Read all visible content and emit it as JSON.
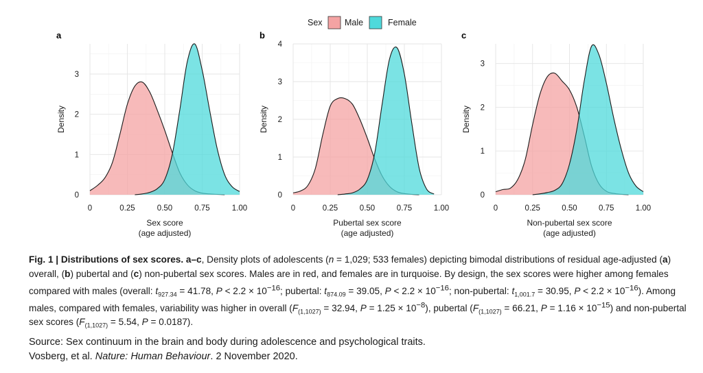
{
  "legend": {
    "title": "Sex",
    "items": [
      {
        "label": "Male",
        "color": "#F4A3A3"
      },
      {
        "label": "Female",
        "color": "#4FD9DB"
      }
    ]
  },
  "chart_data": [
    {
      "panel": "a",
      "type": "area",
      "xlabel": [
        "Sex score",
        "(age adjusted)"
      ],
      "ylabel": "Density",
      "xlim": [
        0,
        1
      ],
      "ylim": [
        0,
        3.75
      ],
      "xticks": [
        "0",
        "0.25",
        "0.50",
        "0.75",
        "1.00"
      ],
      "xtick_values": [
        0,
        0.25,
        0.5,
        0.75,
        1.0
      ],
      "yticks": [
        0,
        1,
        2,
        3
      ],
      "series": [
        {
          "name": "Male",
          "color": "#F4A3A3",
          "x": [
            0,
            0.05,
            0.1,
            0.15,
            0.2,
            0.25,
            0.3,
            0.35,
            0.4,
            0.45,
            0.5,
            0.55,
            0.6,
            0.65,
            0.7,
            0.75,
            0.8,
            0.85,
            0.9
          ],
          "y": [
            0.1,
            0.23,
            0.42,
            0.8,
            1.5,
            2.25,
            2.7,
            2.8,
            2.55,
            2.1,
            1.6,
            1.05,
            0.55,
            0.25,
            0.1,
            0.04,
            0.02,
            0.01,
            0
          ]
        },
        {
          "name": "Female",
          "color": "#4FD9DB",
          "x": [
            0.3,
            0.35,
            0.4,
            0.45,
            0.5,
            0.55,
            0.6,
            0.65,
            0.7,
            0.75,
            0.8,
            0.85,
            0.9,
            0.95,
            1.0
          ],
          "y": [
            0,
            0.02,
            0.06,
            0.15,
            0.38,
            1.0,
            2.1,
            3.3,
            3.75,
            3.1,
            2.1,
            1.15,
            0.5,
            0.2,
            0.08
          ]
        }
      ]
    },
    {
      "panel": "b",
      "type": "area",
      "xlabel": [
        "Pubertal sex score",
        "(age adjusted)"
      ],
      "ylabel": "Density",
      "xlim": [
        0,
        1
      ],
      "ylim": [
        0,
        4
      ],
      "xticks": [
        "0",
        "0.25",
        "0.50",
        "0.75",
        "1.00"
      ],
      "xtick_values": [
        0,
        0.25,
        0.5,
        0.75,
        1.0
      ],
      "yticks": [
        0,
        1,
        2,
        3,
        4
      ],
      "series": [
        {
          "name": "Male",
          "color": "#F4A3A3",
          "x": [
            0,
            0.05,
            0.1,
            0.15,
            0.2,
            0.25,
            0.3,
            0.35,
            0.4,
            0.45,
            0.5,
            0.55,
            0.6,
            0.65,
            0.7,
            0.75,
            0.8,
            0.85
          ],
          "y": [
            0.05,
            0.1,
            0.25,
            0.7,
            1.6,
            2.35,
            2.55,
            2.55,
            2.4,
            2.0,
            1.5,
            0.95,
            0.5,
            0.22,
            0.08,
            0.03,
            0.01,
            0
          ]
        },
        {
          "name": "Female",
          "color": "#4FD9DB",
          "x": [
            0.3,
            0.35,
            0.4,
            0.45,
            0.5,
            0.55,
            0.6,
            0.65,
            0.7,
            0.75,
            0.8,
            0.85,
            0.9,
            0.95
          ],
          "y": [
            0,
            0.02,
            0.05,
            0.15,
            0.4,
            1.1,
            2.4,
            3.6,
            3.9,
            3.2,
            1.9,
            0.7,
            0.15,
            0.02
          ]
        }
      ]
    },
    {
      "panel": "c",
      "type": "area",
      "xlabel": [
        "Non-pubertal sex score",
        "(age adjusted)"
      ],
      "ylabel": "Density",
      "xlim": [
        0,
        1
      ],
      "ylim": [
        0,
        3.45
      ],
      "xticks": [
        "0",
        "0.25",
        "0.50",
        "0.75",
        "1.00"
      ],
      "xtick_values": [
        0,
        0.25,
        0.5,
        0.75,
        1.0
      ],
      "yticks": [
        0,
        1,
        2,
        3
      ],
      "series": [
        {
          "name": "Male",
          "color": "#F4A3A3",
          "x": [
            0,
            0.05,
            0.1,
            0.15,
            0.2,
            0.25,
            0.3,
            0.35,
            0.4,
            0.45,
            0.5,
            0.55,
            0.6,
            0.65,
            0.7,
            0.75,
            0.8,
            0.85,
            0.9
          ],
          "y": [
            0.07,
            0.12,
            0.15,
            0.35,
            0.8,
            1.6,
            2.3,
            2.7,
            2.78,
            2.6,
            2.4,
            2.0,
            1.35,
            0.65,
            0.25,
            0.08,
            0.03,
            0.01,
            0
          ]
        },
        {
          "name": "Female",
          "color": "#4FD9DB",
          "x": [
            0.25,
            0.3,
            0.35,
            0.4,
            0.45,
            0.5,
            0.55,
            0.6,
            0.65,
            0.7,
            0.75,
            0.8,
            0.85,
            0.9,
            0.95,
            1.0
          ],
          "y": [
            0,
            0.02,
            0.05,
            0.1,
            0.25,
            0.7,
            1.5,
            2.6,
            3.4,
            3.2,
            2.55,
            1.75,
            1.05,
            0.5,
            0.2,
            0.07
          ]
        }
      ]
    }
  ],
  "caption": {
    "lead": "Fig. 1 | Distributions of sex scores. a–c",
    "text": ", Density plots of adolescents (n = 1,029; 533 females) depicting bimodal distributions of residual age-adjusted (a) overall, (b) pubertal and (c) non-pubertal sex scores. Males are in red, and females are in turquoise. By design, the sex scores were higher among females compared with males (overall: t927.34 = 41.78, P < 2.2 × 10−16; pubertal: t874.09 = 39.05, P < 2.2 × 10−16; non-pubertal: t1,001.7 = 30.95, P < 2.2 × 10−16). Among males, compared with females, variability was higher in overall (F(1,1027) = 32.94, P = 1.25 × 10−8), pubertal (F(1,1027) = 66.21, P = 1.16 × 10−15) and non-pubertal sex scores (F(1,1027) = 5.54, P = 0.0187)."
  },
  "source": {
    "line1": "Source: Sex continuum in the brain and body during adolescence and psychological traits.",
    "authors": "Vosberg, et al. ",
    "journal": "Nature: Human Behaviour",
    "date": ". 2 November 2020."
  }
}
